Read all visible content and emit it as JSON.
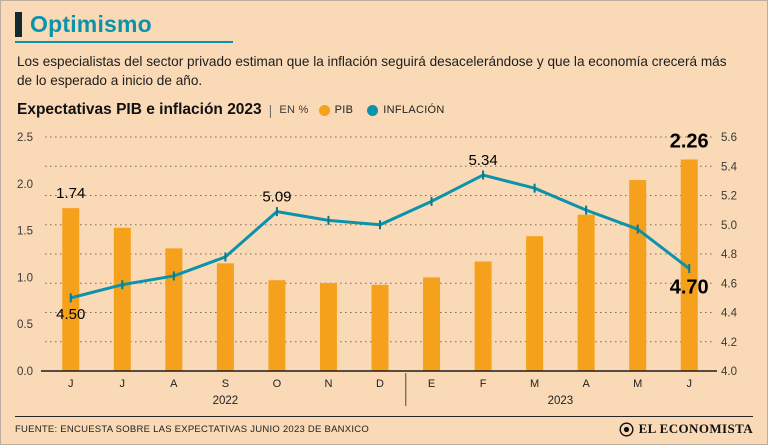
{
  "colors": {
    "background": "#f9d9b6",
    "accent_teal": "#0c93ac",
    "bar_orange": "#f6a11c",
    "line_teal": "#0b93ab"
  },
  "header": {
    "title": "Optimismo",
    "intro": "Los especialistas del sector privado estiman que la inflación seguirá desacelerándose y que la economía crecerá más de lo esperado a inicio de año."
  },
  "chart_data": {
    "type": "bar+line",
    "title": "Expectativas PIB e inflación 2023",
    "separator": "|",
    "unit_label": "EN %",
    "grid": "dotted-horizontal",
    "legend_position": "top",
    "categories": [
      "J",
      "J",
      "A",
      "S",
      "O",
      "N",
      "D",
      "E",
      "F",
      "M",
      "A",
      "M",
      "J"
    ],
    "year_groups": [
      {
        "label": "2022",
        "from": 0,
        "to": 6
      },
      {
        "label": "2023",
        "from": 7,
        "to": 12
      }
    ],
    "series": [
      {
        "name": "PIB",
        "type": "bar",
        "axis": "left",
        "color": "#f6a11c",
        "values": [
          1.74,
          1.53,
          1.31,
          1.15,
          0.97,
          0.94,
          0.92,
          1.0,
          1.17,
          1.44,
          1.67,
          2.04,
          2.26
        ]
      },
      {
        "name": "INFLACIÓN",
        "type": "line",
        "axis": "right",
        "color": "#0b93ab",
        "values": [
          4.5,
          4.59,
          4.65,
          4.78,
          5.09,
          5.03,
          5.0,
          5.16,
          5.34,
          5.25,
          5.1,
          4.97,
          4.7
        ]
      }
    ],
    "left_axis": {
      "min": 0,
      "max": 2.5,
      "ticks": [
        "2.5",
        "2.0",
        "1.5",
        "1.0",
        "0.5",
        "0.0"
      ]
    },
    "right_axis": {
      "min": 4.0,
      "max": 5.6,
      "ticks": [
        "5.6",
        "5.4",
        "5.2",
        "5.0",
        "4.8",
        "4.6",
        "4.4",
        "4.2",
        "4.0"
      ]
    },
    "annotations": [
      {
        "series": "PIB",
        "index": 0,
        "text": "1.74",
        "placement": "above",
        "size": "normal"
      },
      {
        "series": "PIB",
        "index": 12,
        "text": "2.26",
        "placement": "above",
        "size": "large"
      },
      {
        "series": "INFLACIÓN",
        "index": 0,
        "text": "4.50",
        "placement": "below",
        "size": "normal"
      },
      {
        "series": "INFLACIÓN",
        "index": 4,
        "text": "5.09",
        "placement": "above",
        "size": "normal"
      },
      {
        "series": "INFLACIÓN",
        "index": 8,
        "text": "5.34",
        "placement": "above",
        "size": "normal"
      },
      {
        "series": "INFLACIÓN",
        "index": 12,
        "text": "4.70",
        "placement": "below",
        "size": "large"
      }
    ]
  },
  "footer": {
    "source": "FUENTE: ENCUESTA SOBRE LAS EXPECTATIVAS JUNIO 2023 DE BANXICO",
    "brand": "EL ECONOMISTA"
  }
}
